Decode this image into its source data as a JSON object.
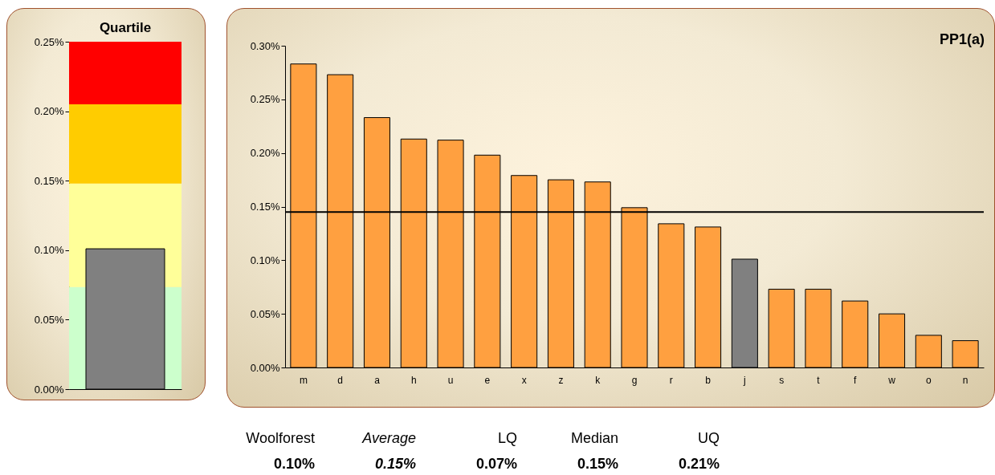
{
  "chart_data": [
    {
      "type": "bar",
      "title": "Quartile",
      "categories": [
        null
      ],
      "values": [
        0.101
      ],
      "colors": [
        "#808080"
      ],
      "ylim": [
        0,
        0.25
      ],
      "yticks": [
        {
          "value": 0,
          "label": "0.00%"
        },
        {
          "value": 0.05,
          "label": "0.05%"
        },
        {
          "value": 0.1,
          "label": "0.10%"
        },
        {
          "value": 0.15,
          "label": "0.15%"
        },
        {
          "value": 0.2,
          "label": "0.20%"
        },
        {
          "value": 0.25,
          "label": "0.25%"
        }
      ],
      "bands": [
        {
          "axis": "y",
          "from": 0,
          "to": 0.0735,
          "color": "#ccffcc"
        },
        {
          "axis": "y",
          "from": 0.0735,
          "to": 0.148,
          "color": "#ffff99"
        },
        {
          "axis": "y",
          "from": 0.148,
          "to": 0.205,
          "color": "#ffcc00"
        },
        {
          "axis": "y",
          "from": 0.205,
          "to": 0.25,
          "color": "#ff0000"
        }
      ],
      "grid": false,
      "legend": false
    },
    {
      "type": "bar",
      "title": "PP1(a)",
      "categories": [
        "m",
        "d",
        "a",
        "h",
        "u",
        "e",
        "x",
        "z",
        "k",
        "g",
        "r",
        "b",
        "j",
        "s",
        "t",
        "f",
        "w",
        "o",
        "n"
      ],
      "values": [
        0.283,
        0.273,
        0.233,
        0.213,
        0.212,
        0.198,
        0.179,
        0.175,
        0.173,
        0.149,
        0.134,
        0.131,
        0.101,
        0.073,
        0.073,
        0.062,
        0.05,
        0.03,
        0.025
      ],
      "colors": [
        "#ffa040",
        "#ffa040",
        "#ffa040",
        "#ffa040",
        "#ffa040",
        "#ffa040",
        "#ffa040",
        "#ffa040",
        "#ffa040",
        "#ffa040",
        "#ffa040",
        "#ffa040",
        "#808080",
        "#ffa040",
        "#ffa040",
        "#ffa040",
        "#ffa040",
        "#ffa040",
        "#ffa040"
      ],
      "ylim": [
        0,
        0.3
      ],
      "yticks": [
        {
          "value": 0,
          "label": "0.00%"
        },
        {
          "value": 0.05,
          "label": "0.05%"
        },
        {
          "value": 0.1,
          "label": "0.10%"
        },
        {
          "value": 0.15,
          "label": "0.15%"
        },
        {
          "value": 0.2,
          "label": "0.20%"
        },
        {
          "value": 0.25,
          "label": "0.25%"
        },
        {
          "value": 0.3,
          "label": "0.30%"
        }
      ],
      "ref_lines": [
        {
          "axis": "y",
          "value": 0.145,
          "color": "#000000"
        }
      ],
      "annotations": [
        "Woolforest",
        "Average",
        "LQ",
        "Median",
        "UQ",
        "0.10%",
        "0.15%",
        "0.07%",
        "0.15%",
        "0.21%"
      ],
      "grid": false,
      "legend": false
    }
  ]
}
